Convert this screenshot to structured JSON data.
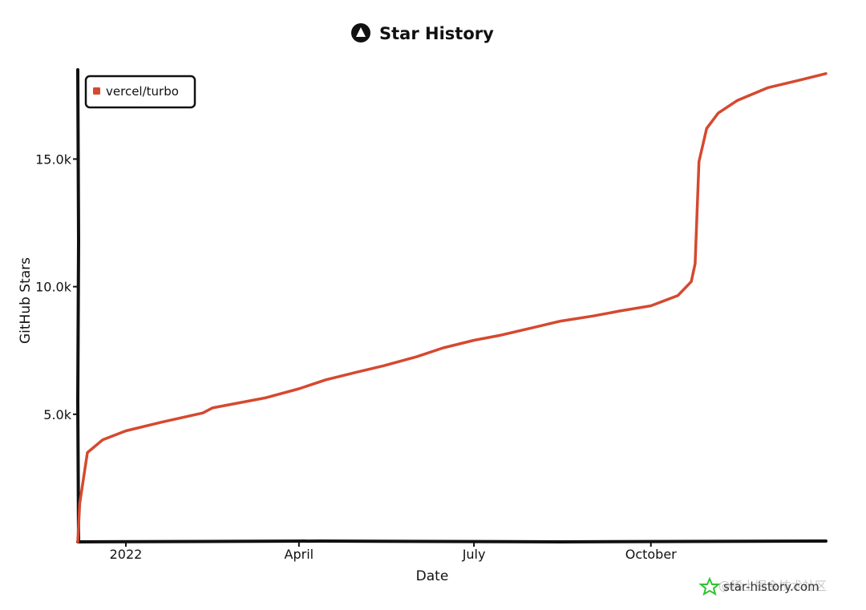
{
  "chart_data": {
    "type": "line",
    "title": "Star History",
    "xlabel": "Date",
    "ylabel": "GitHub Stars",
    "x_tick_labels": [
      "2022",
      "April",
      "July",
      "October"
    ],
    "y_tick_labels": [
      "5.0k",
      "10.0k",
      "15.0k"
    ],
    "y_tick_values": [
      5000,
      10000,
      15000
    ],
    "ylim": [
      0,
      18500
    ],
    "xlim": [
      "2021-12-07",
      "2022-12-31"
    ],
    "legend_position": "top-left",
    "grid": false,
    "series": [
      {
        "name": "vercel/turbo",
        "color": "#d5492f",
        "points": [
          [
            "2021-12-07",
            0
          ],
          [
            "2021-12-08",
            1500
          ],
          [
            "2021-12-10",
            2500
          ],
          [
            "2021-12-12",
            3500
          ],
          [
            "2021-12-20",
            4000
          ],
          [
            "2022-01-01",
            4350
          ],
          [
            "2022-01-20",
            4700
          ],
          [
            "2022-02-10",
            5050
          ],
          [
            "2022-02-15",
            5250
          ],
          [
            "2022-03-01",
            5450
          ],
          [
            "2022-03-15",
            5650
          ],
          [
            "2022-04-01",
            6000
          ],
          [
            "2022-04-15",
            6350
          ],
          [
            "2022-05-01",
            6650
          ],
          [
            "2022-05-15",
            6900
          ],
          [
            "2022-06-01",
            7250
          ],
          [
            "2022-06-15",
            7600
          ],
          [
            "2022-07-01",
            7900
          ],
          [
            "2022-07-15",
            8100
          ],
          [
            "2022-08-01",
            8400
          ],
          [
            "2022-08-15",
            8650
          ],
          [
            "2022-09-01",
            8850
          ],
          [
            "2022-09-15",
            9050
          ],
          [
            "2022-10-01",
            9250
          ],
          [
            "2022-10-15",
            9650
          ],
          [
            "2022-10-22",
            10200
          ],
          [
            "2022-10-24",
            10900
          ],
          [
            "2022-10-26",
            14900
          ],
          [
            "2022-10-30",
            16200
          ],
          [
            "2022-11-05",
            16800
          ],
          [
            "2022-11-15",
            17300
          ],
          [
            "2022-12-01",
            17800
          ],
          [
            "2022-12-15",
            18050
          ],
          [
            "2022-12-31",
            18350
          ]
        ]
      }
    ]
  },
  "watermark": {
    "text": "star-history.com",
    "cn_text": "@稀土掘金技术社区",
    "icon": "star-icon",
    "icon_color": "#2fc42f"
  }
}
